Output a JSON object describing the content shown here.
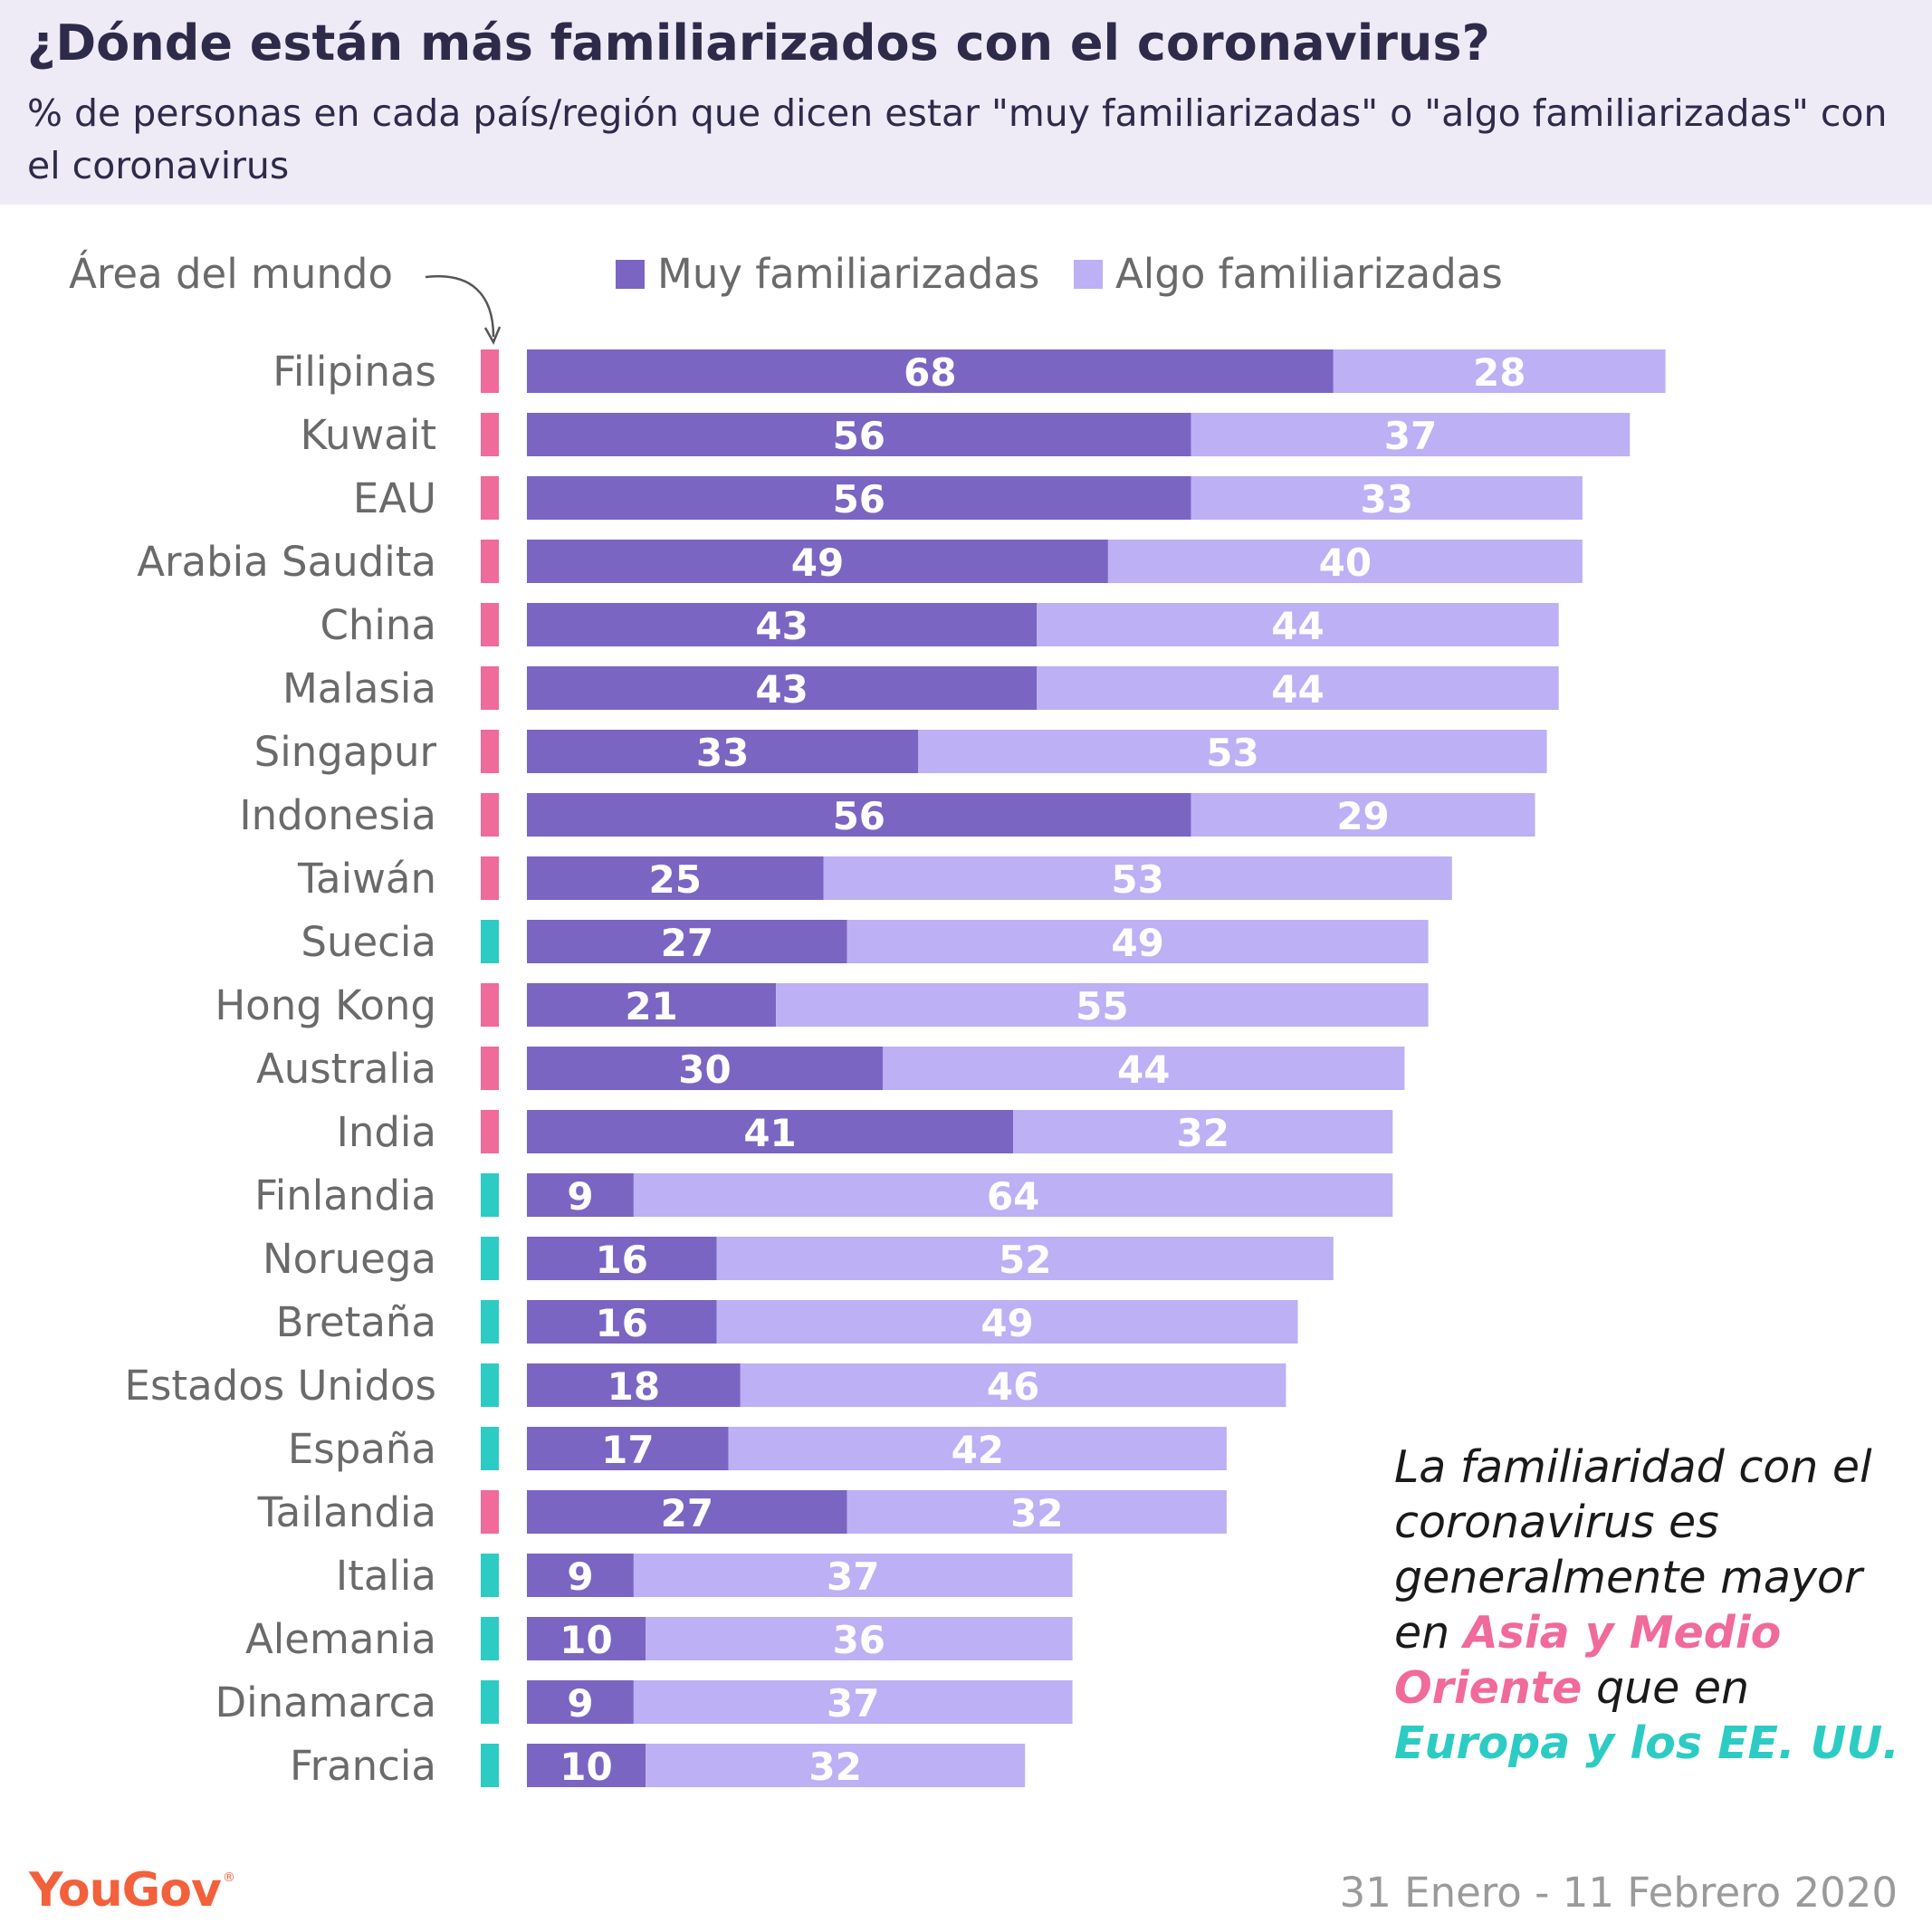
{
  "header": {
    "title": "¿Dónde están más familiarizados con el coronavirus?",
    "subtitle": "% de personas en cada país/región que dicen estar \"muy familiarizadas\" o \"algo familiarizadas\" con el coronavirus"
  },
  "area_label": "Área del mundo",
  "legend": {
    "very": "Muy familiarizadas",
    "somewhat": "Algo familiarizadas"
  },
  "colors": {
    "very": "#7b65c2",
    "somewhat": "#bdb0f4",
    "asia": "#f06a9a",
    "europe_us": "#2cccc4"
  },
  "annotation": {
    "text1": "La familiaridad con el coronavirus es generalmente mayor en ",
    "highlight_asia": "Asia y Medio Oriente",
    "text2": " que en ",
    "highlight_europe": "Europa y los EE. UU."
  },
  "footer": {
    "logo": "YouGov",
    "logo_mark": "®",
    "date_range": "31 Enero - 11 Febrero 2020"
  },
  "chart_data": {
    "type": "bar",
    "orientation": "horizontal",
    "stacked": true,
    "categories": [
      "Filipinas",
      "Kuwait",
      "EAU",
      "Arabia Saudita",
      "China",
      "Malasia",
      "Singapur",
      "Indonesia",
      "Taiwán",
      "Suecia",
      "Hong Kong",
      "Australia",
      "India",
      "Finlandia",
      "Noruega",
      "Bretaña",
      "Estados Unidos",
      "España",
      "Tailandia",
      "Italia",
      "Alemania",
      "Dinamarca",
      "Francia"
    ],
    "regions": [
      "asia",
      "asia",
      "asia",
      "asia",
      "asia",
      "asia",
      "asia",
      "asia",
      "asia",
      "europe_us",
      "asia",
      "asia",
      "asia",
      "europe_us",
      "europe_us",
      "europe_us",
      "europe_us",
      "europe_us",
      "asia",
      "europe_us",
      "europe_us",
      "europe_us",
      "europe_us"
    ],
    "series": [
      {
        "name": "Muy familiarizadas",
        "values": [
          68,
          56,
          56,
          49,
          43,
          43,
          33,
          56,
          25,
          27,
          21,
          30,
          41,
          9,
          16,
          16,
          18,
          17,
          27,
          9,
          10,
          9,
          10
        ]
      },
      {
        "name": "Algo familiarizadas",
        "values": [
          28,
          37,
          33,
          40,
          44,
          44,
          53,
          29,
          53,
          49,
          55,
          44,
          32,
          64,
          52,
          49,
          46,
          42,
          32,
          37,
          36,
          37,
          32
        ]
      }
    ],
    "xlim": [
      0,
      100
    ],
    "grid": false,
    "legend_position": "top"
  }
}
